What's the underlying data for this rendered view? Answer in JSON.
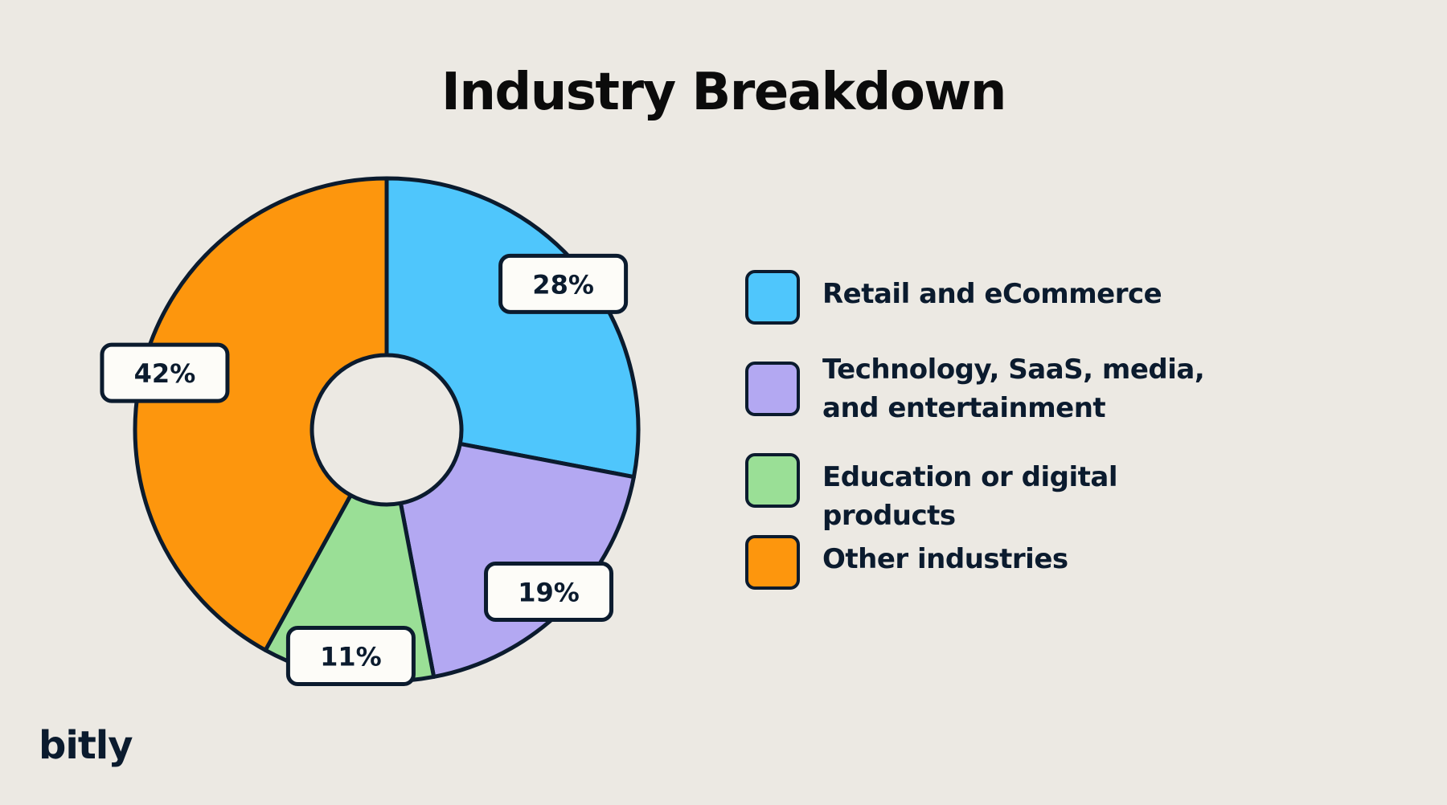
{
  "chart_data": {
    "type": "pie",
    "title": "Industry Breakdown",
    "donut": true,
    "start": "top",
    "slices": [
      {
        "label": "Retail and eCommerce",
        "value": 28,
        "display": "28%",
        "color": "#4fc6fc"
      },
      {
        "label": "Technology, SaaS, media, and entertainment",
        "value": 19,
        "display": "19%",
        "color": "#b3a8f2"
      },
      {
        "label": "Education or digital products",
        "value": 11,
        "display": "11%",
        "color": "#9adf96"
      },
      {
        "label": "Other industries",
        "value": 42,
        "display": "42%",
        "color": "#fd960d"
      }
    ],
    "legend_placement": "right"
  },
  "branding": {
    "logo_text": "bitly"
  }
}
